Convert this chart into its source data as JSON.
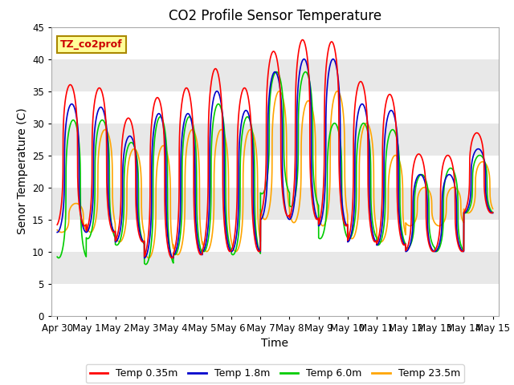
{
  "title": "CO2 Profile Sensor Temperature",
  "ylabel": "Senor Temperature (C)",
  "xlabel": "Time",
  "annotation": "TZ_co2prof",
  "ylim": [
    0,
    45
  ],
  "yticks": [
    0,
    5,
    10,
    15,
    20,
    25,
    30,
    35,
    40,
    45
  ],
  "xtick_labels": [
    "Apr 30",
    "May 1",
    "May 2",
    "May 3",
    "May 4",
    "May 5",
    "May 6",
    "May 7",
    "May 8",
    "May 9",
    "May 10",
    "May 11",
    "May 12",
    "May 13",
    "May 14",
    "May 15"
  ],
  "colors": {
    "Temp 0.35m": "#ff0000",
    "Temp 1.8m": "#0000cc",
    "Temp 6.0m": "#00cc00",
    "Temp 23.5m": "#ffa500"
  },
  "legend_labels": [
    "Temp 0.35m",
    "Temp 1.8m",
    "Temp 6.0m",
    "Temp 23.5m"
  ],
  "fig_bg": "#ffffff",
  "plot_bg": "#e8e8e8",
  "grid_color": "#ffffff",
  "title_fontsize": 12,
  "axis_fontsize": 10,
  "tick_fontsize": 8.5,
  "legend_fontsize": 9,
  "day_peaks_0": [
    36,
    35.5,
    30.8,
    34,
    35.5,
    38.5,
    35.5,
    41.2,
    43,
    42.7,
    36.5,
    34.5,
    25.2,
    25,
    28.5
  ],
  "day_mins_0": [
    14,
    13,
    11.5,
    9,
    9.5,
    10,
    10,
    15.5,
    15,
    14,
    11.5,
    11,
    10,
    10,
    16
  ],
  "day_peaks_1": [
    33,
    32.5,
    28,
    31.5,
    31.5,
    35,
    32,
    38,
    40,
    40,
    33,
    32,
    22,
    22,
    26
  ],
  "day_mins_1": [
    13,
    13,
    11.5,
    9,
    9.5,
    10,
    10,
    15,
    15,
    14,
    11.5,
    11,
    10,
    10,
    16
  ],
  "day_peaks_2": [
    30.5,
    30.5,
    27,
    31,
    31,
    33,
    31,
    38,
    38,
    30,
    30,
    29,
    22,
    23,
    25
  ],
  "day_mins_2": [
    9,
    12,
    11,
    8,
    9.5,
    10,
    9.5,
    19,
    17,
    12,
    12,
    11,
    10.5,
    10,
    16
  ],
  "day_peaks_3": [
    17.5,
    29,
    26,
    26.5,
    29,
    29,
    29,
    35,
    33.5,
    35,
    30,
    25,
    20,
    20,
    24
  ],
  "day_mins_3": [
    13,
    13,
    11.5,
    9,
    9.5,
    10,
    10,
    15,
    14.5,
    14,
    12,
    11.5,
    14,
    14,
    16
  ],
  "peak_phase": 0.45,
  "rise_sharpness": 3.0
}
